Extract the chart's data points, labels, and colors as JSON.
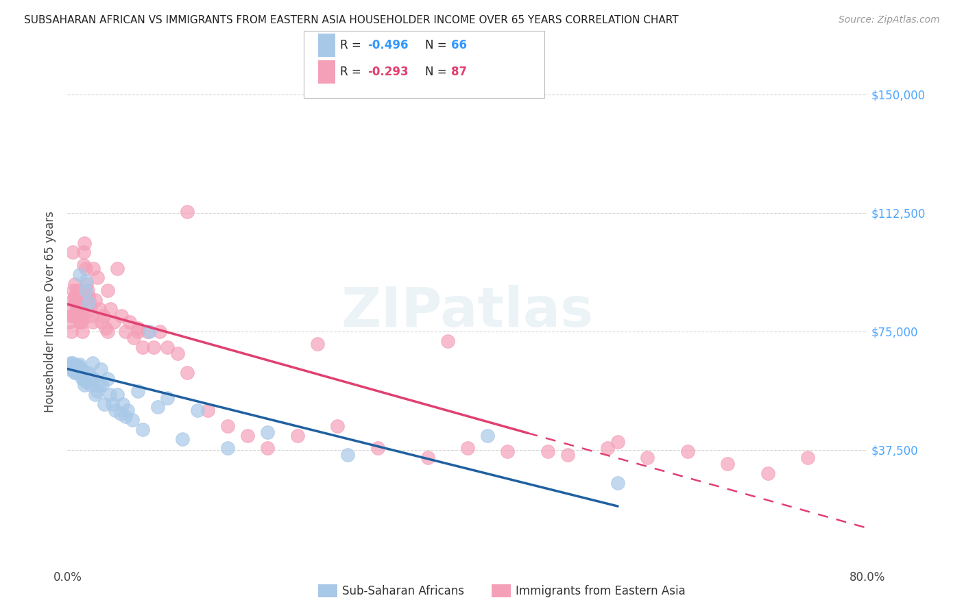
{
  "title": "SUBSAHARAN AFRICAN VS IMMIGRANTS FROM EASTERN ASIA HOUSEHOLDER INCOME OVER 65 YEARS CORRELATION CHART",
  "source": "Source: ZipAtlas.com",
  "ylabel": "Householder Income Over 65 years",
  "xlim": [
    0.0,
    0.8
  ],
  "ylim": [
    0,
    162500
  ],
  "yticks": [
    0,
    37500,
    75000,
    112500,
    150000
  ],
  "ytick_labels": [
    "",
    "$37,500",
    "$75,000",
    "$112,500",
    "$150,000"
  ],
  "color_blue": "#a8c8e8",
  "color_pink": "#f4a0b8",
  "line_blue": "#2060a0",
  "line_pink": "#e04070",
  "watermark": "ZIPatlas",
  "blue_intercept": 67000,
  "blue_slope": -50000,
  "pink_intercept": 88000,
  "pink_slope": -25000,
  "blue_x": [
    0.002,
    0.003,
    0.004,
    0.005,
    0.005,
    0.006,
    0.006,
    0.007,
    0.007,
    0.008,
    0.008,
    0.009,
    0.009,
    0.01,
    0.01,
    0.011,
    0.011,
    0.012,
    0.012,
    0.013,
    0.013,
    0.013,
    0.014,
    0.014,
    0.015,
    0.015,
    0.016,
    0.017,
    0.018,
    0.018,
    0.019,
    0.02,
    0.021,
    0.022,
    0.023,
    0.024,
    0.025,
    0.026,
    0.028,
    0.03,
    0.032,
    0.033,
    0.035,
    0.037,
    0.04,
    0.042,
    0.045,
    0.048,
    0.05,
    0.053,
    0.055,
    0.058,
    0.06,
    0.065,
    0.07,
    0.075,
    0.082,
    0.09,
    0.1,
    0.115,
    0.13,
    0.16,
    0.2,
    0.28,
    0.42,
    0.55
  ],
  "blue_y": [
    63000,
    65000,
    64000,
    65000,
    63000,
    64000,
    63000,
    63000,
    62000,
    63000,
    62000,
    63000,
    64000,
    63500,
    62500,
    64000,
    63000,
    64500,
    93000,
    63000,
    62000,
    61500,
    63000,
    62000,
    62000,
    60000,
    60000,
    58000,
    91000,
    88000,
    59000,
    62000,
    84000,
    61000,
    60000,
    58000,
    65000,
    60000,
    55000,
    56000,
    58000,
    63000,
    58000,
    52000,
    60000,
    55000,
    52000,
    50000,
    55000,
    49000,
    52000,
    48000,
    50000,
    47000,
    56000,
    44000,
    75000,
    51000,
    54000,
    41000,
    50000,
    38000,
    43000,
    36000,
    42000,
    27000
  ],
  "pink_x": [
    0.002,
    0.003,
    0.004,
    0.004,
    0.005,
    0.005,
    0.006,
    0.006,
    0.007,
    0.007,
    0.007,
    0.008,
    0.008,
    0.009,
    0.009,
    0.01,
    0.01,
    0.01,
    0.011,
    0.011,
    0.012,
    0.012,
    0.012,
    0.013,
    0.013,
    0.014,
    0.014,
    0.015,
    0.015,
    0.016,
    0.016,
    0.017,
    0.018,
    0.019,
    0.02,
    0.021,
    0.022,
    0.023,
    0.024,
    0.025,
    0.026,
    0.028,
    0.03,
    0.032,
    0.034,
    0.036,
    0.038,
    0.04,
    0.043,
    0.046,
    0.05,
    0.054,
    0.058,
    0.062,
    0.066,
    0.07,
    0.075,
    0.08,
    0.086,
    0.092,
    0.1,
    0.11,
    0.12,
    0.14,
    0.16,
    0.18,
    0.2,
    0.23,
    0.27,
    0.31,
    0.36,
    0.4,
    0.44,
    0.5,
    0.54,
    0.58,
    0.62,
    0.66,
    0.7,
    0.74,
    0.04,
    0.07,
    0.12,
    0.25,
    0.38,
    0.55,
    0.48
  ],
  "pink_y": [
    78000,
    82000,
    80000,
    75000,
    85000,
    100000,
    80000,
    88000,
    86000,
    90000,
    84000,
    86000,
    84000,
    88000,
    83000,
    84000,
    80000,
    82000,
    84000,
    80000,
    82000,
    78000,
    84000,
    80000,
    78000,
    82000,
    78000,
    80000,
    75000,
    100000,
    96000,
    103000,
    95000,
    90000,
    88000,
    86000,
    84000,
    82000,
    80000,
    78000,
    95000,
    85000,
    92000,
    82000,
    78000,
    80000,
    76000,
    88000,
    82000,
    78000,
    95000,
    80000,
    75000,
    78000,
    73000,
    75000,
    70000,
    75000,
    70000,
    75000,
    70000,
    68000,
    62000,
    50000,
    45000,
    42000,
    38000,
    42000,
    45000,
    38000,
    35000,
    38000,
    37000,
    36000,
    38000,
    35000,
    37000,
    33000,
    30000,
    35000,
    75000,
    76000,
    113000,
    71000,
    72000,
    40000,
    37000
  ]
}
